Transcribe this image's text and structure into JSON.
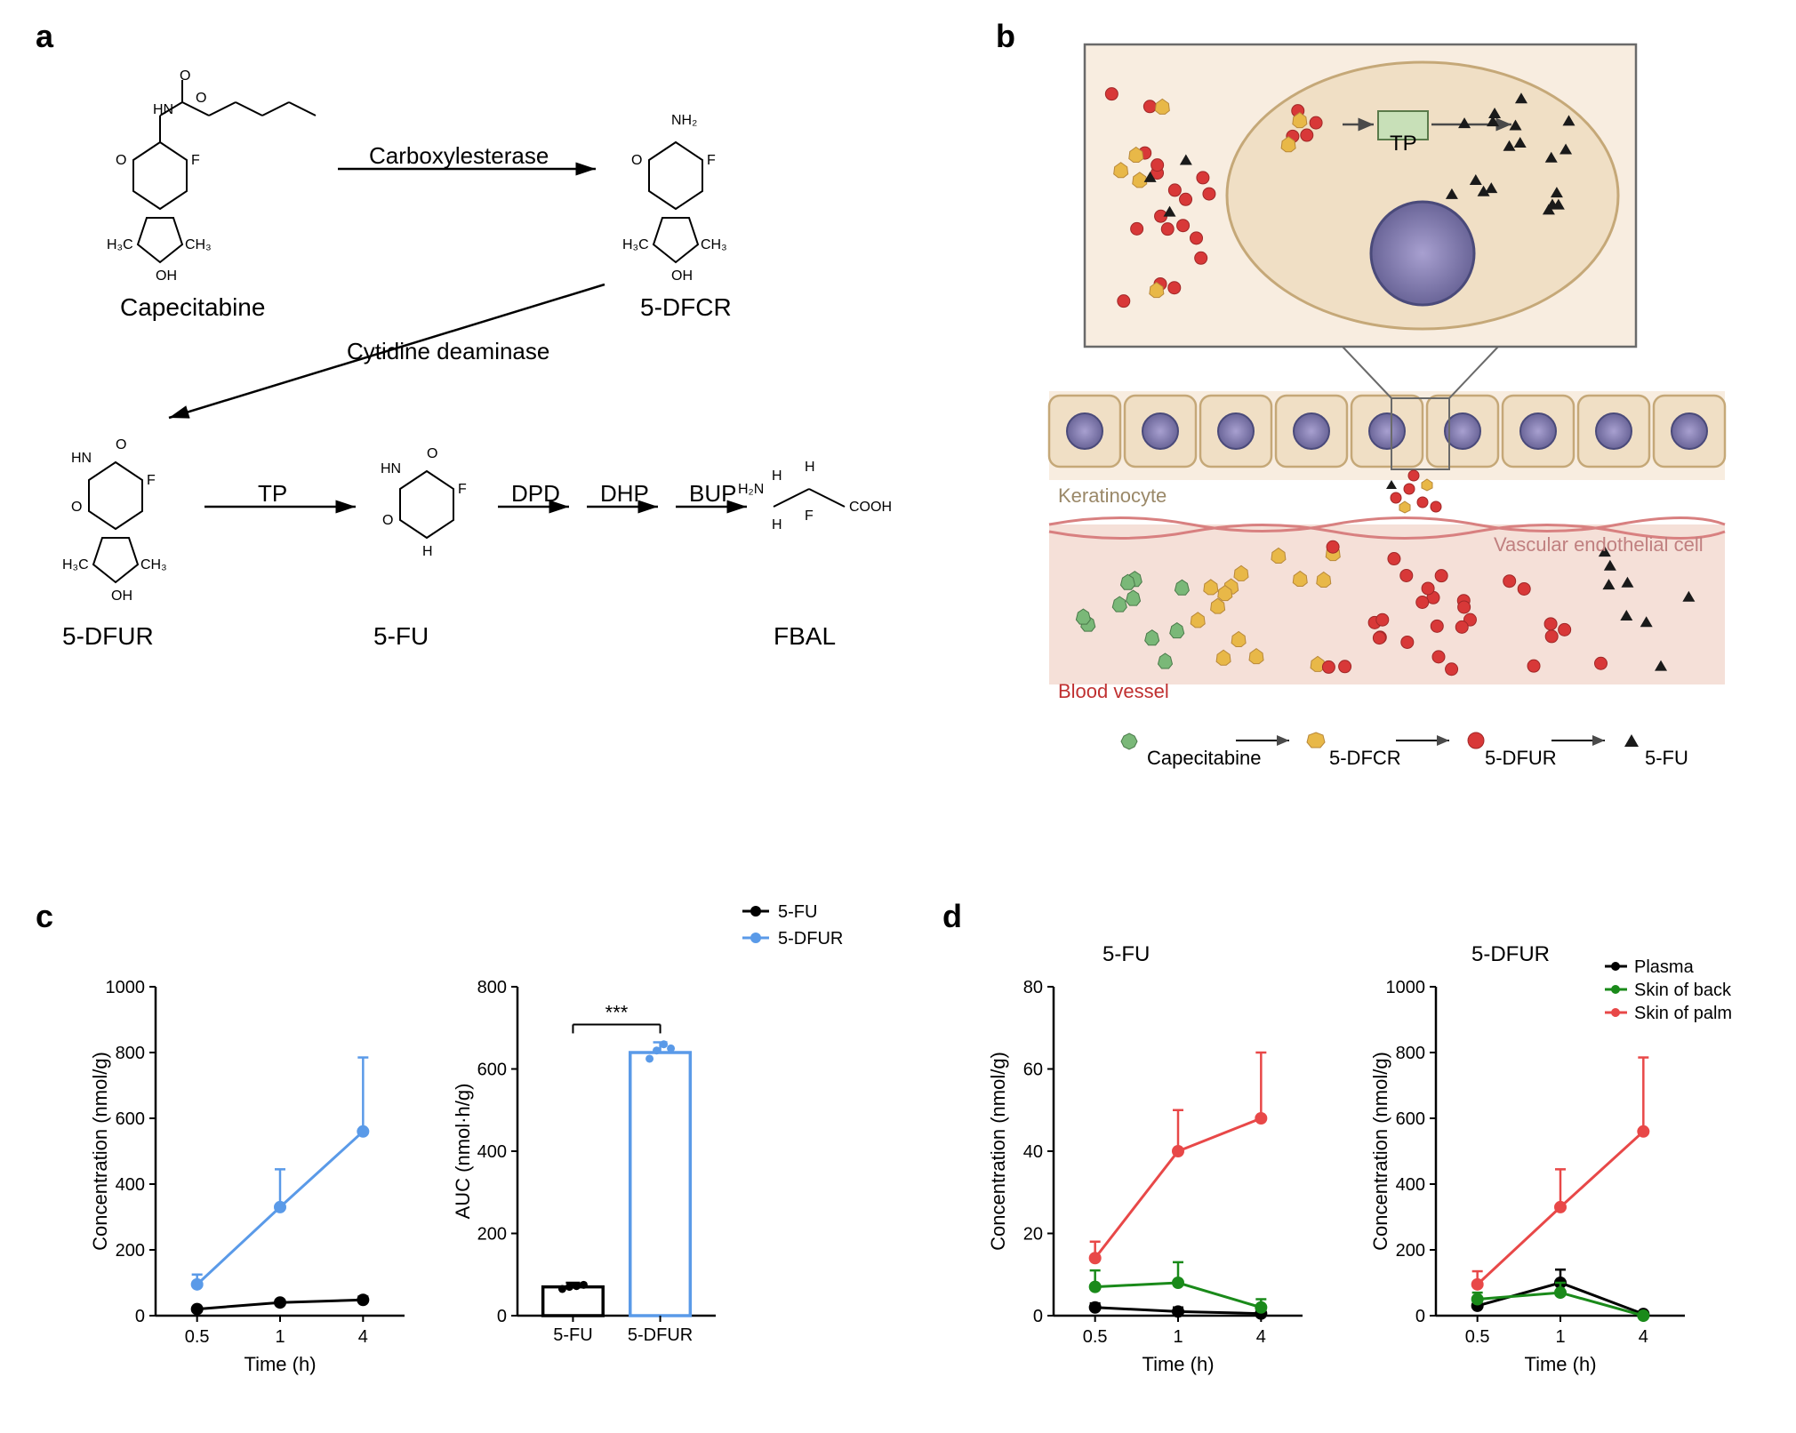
{
  "panels": {
    "a": "a",
    "b": "b",
    "c": "c",
    "d": "d"
  },
  "panel_a": {
    "compounds": {
      "capecitabine": "Capecitabine",
      "dfcr": "5-DFCR",
      "dfur": "5-DFUR",
      "fu": "5-FU",
      "fbal": "FBAL"
    },
    "enzymes": {
      "carboxylesterase": "Carboxylesterase",
      "cytidine_deaminase": "Cytidine deaminase",
      "tp": "TP",
      "dpd": "DPD",
      "dhp": "DHP",
      "bup": "BUP"
    }
  },
  "panel_b": {
    "tp_label": "TP",
    "keratinocyte": "Keratinocyte",
    "vascular": "Vascular endothelial cell",
    "blood_vessel": "Blood vessel",
    "legend": {
      "capecitabine": "Capecitabine",
      "dfcr": "5-DFCR",
      "dfur": "5-DFUR",
      "fu": "5-FU"
    },
    "colors": {
      "cell_fill": "#f0dfc5",
      "cell_stroke": "#c5a878",
      "nucleus_fill": "#8a85b8",
      "nucleus_stroke": "#4a4a7a",
      "tissue_bg": "#f8ede0",
      "blood_bg": "#f0d8d0",
      "vessel_line": "#d88080",
      "capecitabine": "#7ab878",
      "dfcr": "#e8b848",
      "dfur": "#d83838",
      "fu": "#1a1a1a",
      "tp_box": "#c8e0b8"
    }
  },
  "chart_c1": {
    "title": "",
    "xlabel": "Time (h)",
    "ylabel": "Concentration (nmol/g)",
    "xticks": [
      "0.5",
      "1",
      "4"
    ],
    "yticks": [
      "0",
      "200",
      "400",
      "600",
      "800",
      "1000"
    ],
    "ylim": [
      0,
      1000
    ],
    "series": {
      "fu": {
        "name": "5-FU",
        "color": "#000000",
        "values": [
          20,
          40,
          48
        ],
        "errors": [
          5,
          8,
          10
        ]
      },
      "dfur": {
        "name": "5-DFUR",
        "color": "#5a9ae8",
        "values": [
          95,
          330,
          560
        ],
        "errors": [
          30,
          115,
          225
        ]
      }
    }
  },
  "chart_c2": {
    "xlabel": "",
    "ylabel": "AUC (nmol·h/g)",
    "categories": [
      "5-FU",
      "5-DFUR"
    ],
    "yticks": [
      "0",
      "200",
      "400",
      "600",
      "800"
    ],
    "ylim": [
      0,
      800
    ],
    "bars": {
      "fu": {
        "color": "#000000",
        "value": 70,
        "error": 10,
        "points": [
          65,
          70,
          72,
          75
        ]
      },
      "dfur": {
        "color": "#5a9ae8",
        "value": 640,
        "error": 25,
        "points": [
          625,
          645,
          660,
          650
        ]
      }
    },
    "significance": "***"
  },
  "chart_d1": {
    "title": "5-FU",
    "xlabel": "Time (h)",
    "ylabel": "Concentration (nmol/g)",
    "xticks": [
      "0.5",
      "1",
      "4"
    ],
    "yticks": [
      "0",
      "20",
      "40",
      "60",
      "80"
    ],
    "ylim": [
      0,
      80
    ],
    "series": {
      "plasma": {
        "name": "Plasma",
        "color": "#000000",
        "values": [
          2,
          1,
          0.5
        ],
        "errors": [
          1,
          1,
          0.5
        ]
      },
      "back": {
        "name": "Skin of back",
        "color": "#1a8a1a",
        "values": [
          7,
          8,
          2
        ],
        "errors": [
          4,
          5,
          2
        ]
      },
      "palm": {
        "name": "Skin of palm",
        "color": "#e84848",
        "values": [
          14,
          40,
          48
        ],
        "errors": [
          4,
          10,
          16
        ]
      }
    }
  },
  "chart_d2": {
    "title": "5-DFUR",
    "xlabel": "Time (h)",
    "ylabel": "Concentration (nmol/g)",
    "xticks": [
      "0.5",
      "1",
      "4"
    ],
    "yticks": [
      "0",
      "200",
      "400",
      "600",
      "800",
      "1000"
    ],
    "ylim": [
      0,
      1000
    ],
    "series": {
      "plasma": {
        "name": "Plasma",
        "color": "#000000",
        "values": [
          30,
          100,
          5
        ],
        "errors": [
          15,
          40,
          5
        ]
      },
      "back": {
        "name": "Skin of back",
        "color": "#1a8a1a",
        "values": [
          50,
          70,
          0
        ],
        "errors": [
          20,
          30,
          0
        ]
      },
      "palm": {
        "name": "Skin of palm",
        "color": "#e84848",
        "values": [
          95,
          330,
          560
        ],
        "errors": [
          40,
          115,
          225
        ]
      }
    }
  },
  "legend_cd": {
    "fu": "5-FU",
    "dfur": "5-DFUR",
    "plasma": "Plasma",
    "back": "Skin of back",
    "palm": "Skin of palm"
  }
}
